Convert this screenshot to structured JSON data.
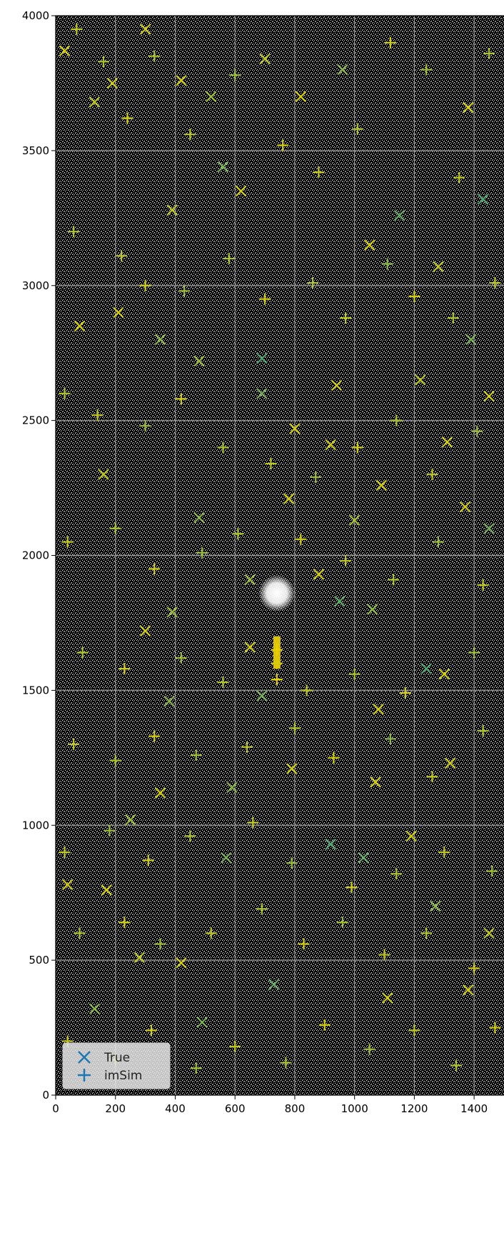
{
  "chart_data": {
    "type": "scatter",
    "title": "",
    "xlabel": "",
    "ylabel": "",
    "xlim": [
      0,
      1500
    ],
    "ylim": [
      0,
      4000
    ],
    "x_ticks": [
      0,
      200,
      400,
      600,
      800,
      1000,
      1200,
      1400
    ],
    "y_ticks": [
      0,
      500,
      1000,
      1500,
      2000,
      2500,
      3000,
      3500,
      4000
    ],
    "x_tick_labels": [
      "0",
      "200",
      "400",
      "600",
      "800",
      "1000",
      "1200",
      "1400"
    ],
    "y_tick_labels": [
      "0",
      "500",
      "1000",
      "1500",
      "2000",
      "2500",
      "3000",
      "3500",
      "4000"
    ],
    "grid": true,
    "background": "noisy star field image (black with white noise)",
    "legend": {
      "placement": "lower-left",
      "entries": [
        {
          "label": "True",
          "marker": "x"
        },
        {
          "label": "imSim",
          "marker": "+"
        }
      ]
    },
    "bright_features": [
      {
        "x": 740,
        "y": 1860,
        "kind": "saturated star"
      },
      {
        "x": 740,
        "y": 1580,
        "kind": "bleed trail",
        "x_end": 740,
        "y_end": 1700
      }
    ],
    "series": [
      {
        "name": "True",
        "marker": "x",
        "color_scale": [
          "#2a9d8f",
          "#e6d200"
        ],
        "points": [
          [
            30,
            3870,
            0.9
          ],
          [
            130,
            3680,
            0.8
          ],
          [
            190,
            3750,
            0.85
          ],
          [
            300,
            3950,
            0.9
          ],
          [
            390,
            3280,
            0.8
          ],
          [
            420,
            3760,
            0.9
          ],
          [
            520,
            3700,
            0.6
          ],
          [
            560,
            3440,
            0.4
          ],
          [
            620,
            3350,
            0.9
          ],
          [
            700,
            3840,
            0.8
          ],
          [
            820,
            3700,
            0.9
          ],
          [
            960,
            3800,
            0.5
          ],
          [
            1050,
            3150,
            0.9
          ],
          [
            1150,
            3260,
            0.3
          ],
          [
            1280,
            3070,
            0.8
          ],
          [
            1380,
            3660,
            0.9
          ],
          [
            1430,
            3320,
            0.2
          ],
          [
            80,
            2850,
            0.9
          ],
          [
            210,
            2900,
            0.9
          ],
          [
            350,
            2800,
            0.5
          ],
          [
            480,
            2720,
            0.6
          ],
          [
            690,
            2730,
            0.2
          ],
          [
            690,
            2600,
            0.4
          ],
          [
            800,
            2470,
            0.9
          ],
          [
            940,
            2630,
            0.9
          ],
          [
            1220,
            2650,
            0.8
          ],
          [
            1310,
            2420,
            0.9
          ],
          [
            1450,
            2590,
            0.9
          ],
          [
            160,
            2300,
            0.8
          ],
          [
            480,
            2140,
            0.5
          ],
          [
            780,
            2210,
            0.9
          ],
          [
            1000,
            2130,
            0.7
          ],
          [
            1090,
            2260,
            0.9
          ],
          [
            1370,
            2180,
            0.9
          ],
          [
            650,
            1910,
            0.6
          ],
          [
            880,
            1930,
            0.9
          ],
          [
            950,
            1830,
            0.3
          ],
          [
            1060,
            1800,
            0.5
          ],
          [
            300,
            1720,
            0.9
          ],
          [
            390,
            1790,
            0.6
          ],
          [
            1240,
            1580,
            0.2
          ],
          [
            1300,
            1560,
            0.9
          ],
          [
            690,
            1480,
            0.4
          ],
          [
            1080,
            1430,
            0.9
          ],
          [
            380,
            1460,
            0.5
          ],
          [
            350,
            1120,
            0.9
          ],
          [
            590,
            1140,
            0.5
          ],
          [
            790,
            1210,
            0.9
          ],
          [
            1070,
            1160,
            0.9
          ],
          [
            1190,
            960,
            0.9
          ],
          [
            920,
            930,
            0.2
          ],
          [
            1030,
            880,
            0.3
          ],
          [
            570,
            880,
            0.4
          ],
          [
            1270,
            700,
            0.5
          ],
          [
            40,
            780,
            0.9
          ],
          [
            170,
            760,
            0.9
          ],
          [
            280,
            510,
            0.8
          ],
          [
            420,
            490,
            0.9
          ],
          [
            730,
            410,
            0.3
          ],
          [
            1110,
            360,
            0.9
          ],
          [
            1380,
            390,
            0.9
          ],
          [
            1450,
            600,
            0.8
          ],
          [
            130,
            320,
            0.5
          ],
          [
            490,
            270,
            0.4
          ],
          [
            650,
            1660,
            0.9
          ],
          [
            250,
            1020,
            0.6
          ],
          [
            1390,
            2800,
            0.4
          ],
          [
            1450,
            2100,
            0.4
          ],
          [
            1320,
            1230,
            0.9
          ],
          [
            920,
            2410,
            0.9
          ]
        ]
      },
      {
        "name": "imSim",
        "marker": "+",
        "color_scale": [
          "#2a9d8f",
          "#e6d200"
        ],
        "points": [
          [
            70,
            3950,
            0.8
          ],
          [
            160,
            3830,
            0.7
          ],
          [
            240,
            3620,
            0.9
          ],
          [
            330,
            3850,
            0.7
          ],
          [
            450,
            3560,
            0.8
          ],
          [
            600,
            3780,
            0.6
          ],
          [
            760,
            3520,
            0.9
          ],
          [
            880,
            3420,
            0.8
          ],
          [
            1010,
            3580,
            0.7
          ],
          [
            1120,
            3900,
            0.9
          ],
          [
            1240,
            3800,
            0.6
          ],
          [
            1350,
            3400,
            0.8
          ],
          [
            1450,
            3860,
            0.7
          ],
          [
            60,
            3200,
            0.7
          ],
          [
            220,
            3110,
            0.8
          ],
          [
            300,
            3000,
            0.9
          ],
          [
            430,
            2980,
            0.6
          ],
          [
            580,
            3100,
            0.7
          ],
          [
            700,
            2950,
            0.9
          ],
          [
            860,
            3010,
            0.7
          ],
          [
            970,
            2880,
            0.8
          ],
          [
            1110,
            3080,
            0.5
          ],
          [
            1200,
            2960,
            0.9
          ],
          [
            1330,
            2880,
            0.7
          ],
          [
            1470,
            3010,
            0.8
          ],
          [
            30,
            2600,
            0.7
          ],
          [
            140,
            2520,
            0.8
          ],
          [
            300,
            2480,
            0.6
          ],
          [
            420,
            2580,
            0.9
          ],
          [
            560,
            2400,
            0.7
          ],
          [
            720,
            2340,
            0.8
          ],
          [
            870,
            2290,
            0.6
          ],
          [
            1010,
            2400,
            0.9
          ],
          [
            1140,
            2500,
            0.7
          ],
          [
            1260,
            2300,
            0.8
          ],
          [
            1410,
            2460,
            0.6
          ],
          [
            40,
            2050,
            0.8
          ],
          [
            200,
            2100,
            0.7
          ],
          [
            330,
            1950,
            0.9
          ],
          [
            490,
            2010,
            0.6
          ],
          [
            610,
            2080,
            0.7
          ],
          [
            820,
            2060,
            0.9
          ],
          [
            970,
            1980,
            0.8
          ],
          [
            1130,
            1910,
            0.7
          ],
          [
            1280,
            2050,
            0.6
          ],
          [
            1430,
            1890,
            0.8
          ],
          [
            90,
            1640,
            0.7
          ],
          [
            230,
            1580,
            0.9
          ],
          [
            420,
            1620,
            0.6
          ],
          [
            560,
            1530,
            0.7
          ],
          [
            740,
            1600,
            0.9
          ],
          [
            740,
            1650,
            1.0
          ],
          [
            740,
            1540,
            1.0
          ],
          [
            840,
            1500,
            0.8
          ],
          [
            1000,
            1560,
            0.7
          ],
          [
            1170,
            1490,
            0.9
          ],
          [
            1400,
            1640,
            0.6
          ],
          [
            60,
            1300,
            0.8
          ],
          [
            200,
            1240,
            0.7
          ],
          [
            330,
            1330,
            0.9
          ],
          [
            470,
            1260,
            0.6
          ],
          [
            640,
            1290,
            0.8
          ],
          [
            800,
            1360,
            0.7
          ],
          [
            930,
            1250,
            0.9
          ],
          [
            1120,
            1320,
            0.5
          ],
          [
            1260,
            1180,
            0.8
          ],
          [
            1430,
            1350,
            0.7
          ],
          [
            30,
            900,
            0.8
          ],
          [
            180,
            980,
            0.6
          ],
          [
            310,
            870,
            0.9
          ],
          [
            450,
            960,
            0.7
          ],
          [
            660,
            1010,
            0.8
          ],
          [
            790,
            860,
            0.6
          ],
          [
            990,
            770,
            0.9
          ],
          [
            1140,
            820,
            0.7
          ],
          [
            1300,
            900,
            0.8
          ],
          [
            1460,
            830,
            0.6
          ],
          [
            80,
            600,
            0.7
          ],
          [
            230,
            640,
            0.9
          ],
          [
            350,
            560,
            0.6
          ],
          [
            520,
            600,
            0.8
          ],
          [
            690,
            690,
            0.7
          ],
          [
            830,
            560,
            0.9
          ],
          [
            960,
            640,
            0.6
          ],
          [
            1100,
            520,
            0.8
          ],
          [
            1240,
            600,
            0.7
          ],
          [
            1400,
            470,
            0.9
          ],
          [
            40,
            200,
            0.8
          ],
          [
            200,
            130,
            0.7
          ],
          [
            320,
            240,
            0.9
          ],
          [
            470,
            100,
            0.6
          ],
          [
            600,
            180,
            0.8
          ],
          [
            770,
            120,
            0.7
          ],
          [
            900,
            260,
            0.9
          ],
          [
            1050,
            170,
            0.6
          ],
          [
            1200,
            240,
            0.8
          ],
          [
            1340,
            110,
            0.7
          ],
          [
            1470,
            250,
            0.9
          ]
        ]
      }
    ]
  }
}
